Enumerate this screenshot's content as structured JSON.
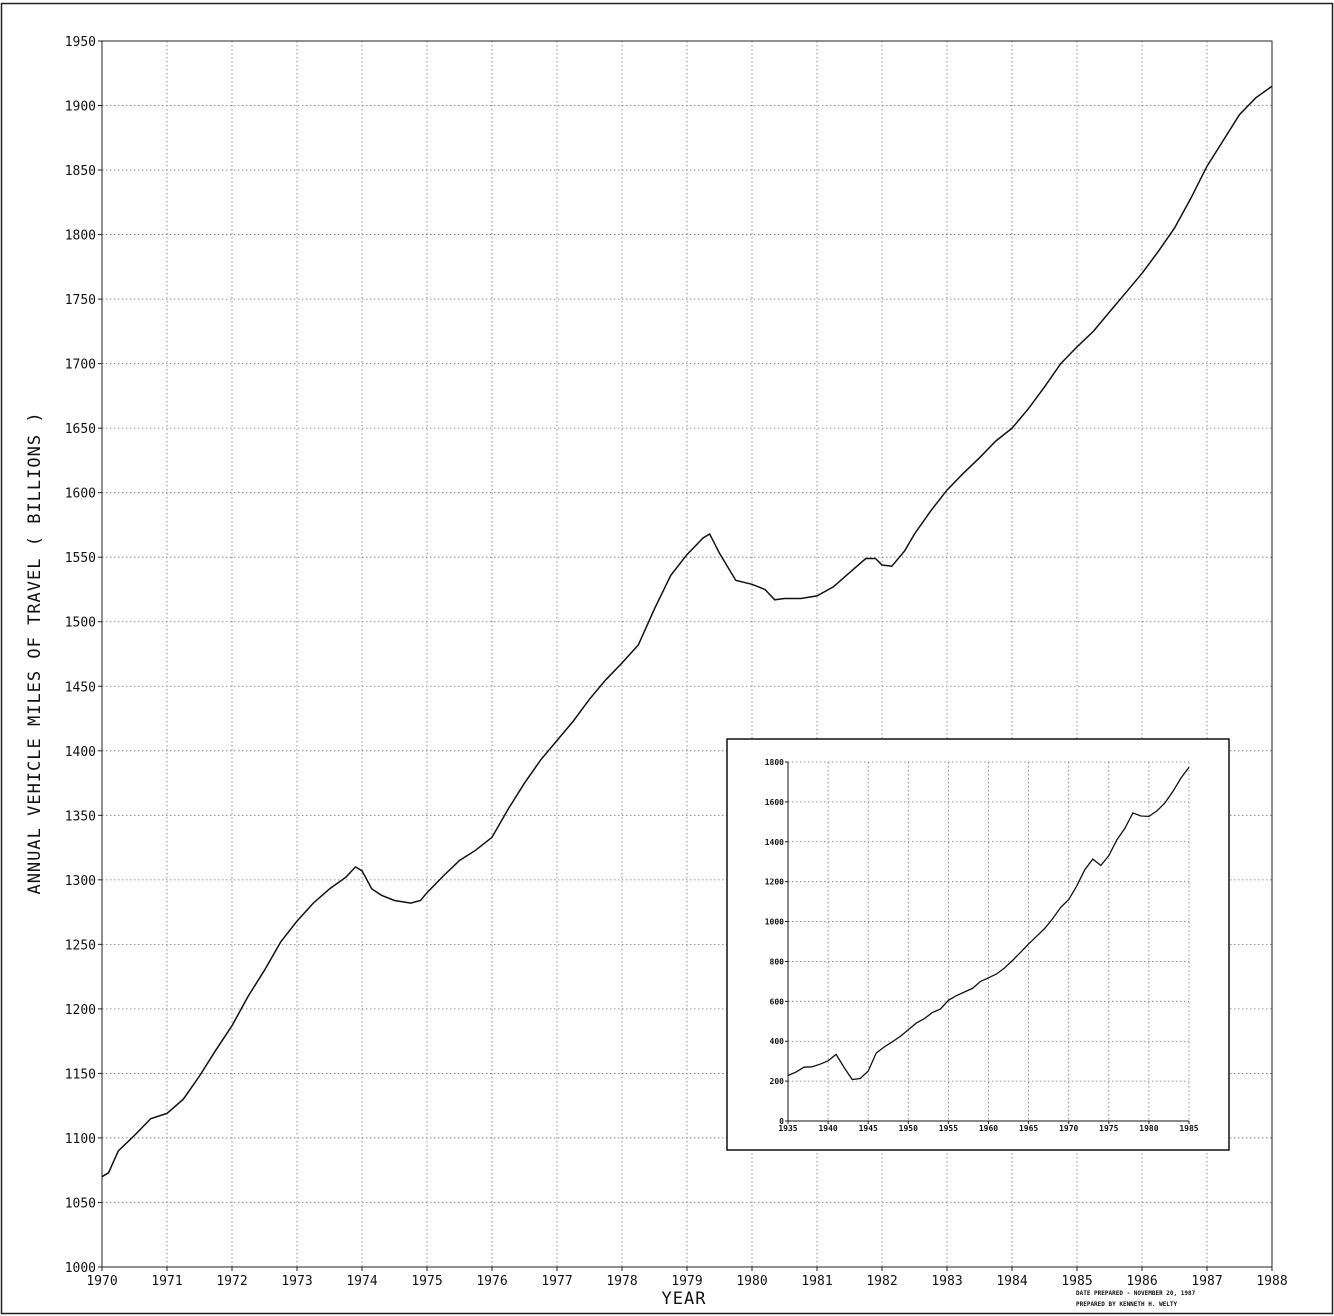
{
  "chart_data": [
    {
      "type": "line",
      "title": "",
      "xlabel": "YEAR",
      "ylabel": "ANNUAL VEHICLE MILES OF TRAVEL ( BILLIONS )",
      "xlim": [
        1970,
        1988
      ],
      "ylim": [
        1000,
        1950
      ],
      "x_ticks": [
        "1970",
        "1971",
        "1972",
        "1973",
        "1974",
        "1975",
        "1976",
        "1977",
        "1978",
        "1979",
        "1980",
        "1981",
        "1982",
        "1983",
        "1984",
        "1985",
        "1986",
        "1987",
        "1988"
      ],
      "y_ticks": [
        "1000",
        "1050",
        "1100",
        "1150",
        "1200",
        "1250",
        "1300",
        "1350",
        "1400",
        "1450",
        "1500",
        "1550",
        "1600",
        "1650",
        "1700",
        "1750",
        "1800",
        "1850",
        "1900",
        "1950"
      ],
      "grid": true,
      "line_color": "#111111",
      "series": [
        {
          "x": [
            1970.0,
            1970.1,
            1970.25,
            1970.5,
            1970.75,
            1971.0,
            1971.25,
            1971.5,
            1971.75,
            1972.0,
            1972.25,
            1972.5,
            1972.75,
            1973.0,
            1973.25,
            1973.5,
            1973.75,
            1973.9,
            1974.0,
            1974.15,
            1974.3,
            1974.5,
            1974.75,
            1974.9,
            1975.0,
            1975.25,
            1975.5,
            1975.75,
            1976.0,
            1976.25,
            1976.5,
            1976.75,
            1977.0,
            1977.25,
            1977.5,
            1977.75,
            1978.0,
            1978.25,
            1978.5,
            1978.75,
            1979.0,
            1979.25,
            1979.35,
            1979.5,
            1979.75,
            1980.0,
            1980.2,
            1980.35,
            1980.5,
            1980.75,
            1981.0,
            1981.25,
            1981.5,
            1981.75,
            1981.9,
            1982.0,
            1982.15,
            1982.35,
            1982.5,
            1982.75,
            1983.0,
            1983.25,
            1983.5,
            1983.75,
            1984.0,
            1984.25,
            1984.5,
            1984.75,
            1985.0,
            1985.25,
            1985.5,
            1985.75,
            1986.0,
            1986.25,
            1986.5,
            1986.75,
            1987.0,
            1987.25,
            1987.5,
            1987.75,
            1988.0
          ],
          "y": [
            1070,
            1073,
            1090,
            1102,
            1115,
            1119,
            1130,
            1148,
            1168,
            1187,
            1210,
            1230,
            1252,
            1268,
            1282,
            1293,
            1302,
            1310,
            1307,
            1293,
            1288,
            1284,
            1282,
            1284,
            1290,
            1303,
            1315,
            1323,
            1333,
            1355,
            1375,
            1393,
            1408,
            1423,
            1440,
            1455,
            1468,
            1482,
            1510,
            1536,
            1552,
            1565,
            1568,
            1553,
            1532,
            1529,
            1525,
            1517,
            1518,
            1518,
            1520,
            1527,
            1538,
            1549,
            1549,
            1544,
            1543,
            1555,
            1568,
            1586,
            1602,
            1615,
            1627,
            1640,
            1650,
            1665,
            1682,
            1700,
            1713,
            1725,
            1740,
            1755,
            1770,
            1787,
            1805,
            1828,
            1853,
            1873,
            1893,
            1906,
            1915
          ]
        }
      ]
    },
    {
      "type": "line",
      "title": "",
      "xlabel": "",
      "ylabel": "",
      "xlim": [
        1935,
        1985
      ],
      "ylim": [
        0,
        1800
      ],
      "x_ticks": [
        "1935",
        "1940",
        "1945",
        "1950",
        "1955",
        "1960",
        "1965",
        "1970",
        "1975",
        "1980",
        "1985"
      ],
      "y_ticks": [
        "0",
        "200",
        "400",
        "600",
        "800",
        "1000",
        "1200",
        "1400",
        "1600",
        "1800"
      ],
      "grid": true,
      "line_color": "#111111",
      "series": [
        {
          "x": [
            1935,
            1936,
            1937,
            1938,
            1939,
            1940,
            1941,
            1942,
            1943,
            1944,
            1945,
            1946,
            1947,
            1948,
            1949,
            1950,
            1951,
            1952,
            1953,
            1954,
            1955,
            1956,
            1957,
            1958,
            1959,
            1960,
            1961,
            1962,
            1963,
            1964,
            1965,
            1966,
            1967,
            1968,
            1969,
            1970,
            1971,
            1972,
            1973,
            1974,
            1975,
            1976,
            1977,
            1978,
            1979,
            1980,
            1981,
            1982,
            1983,
            1984,
            1985
          ],
          "y": [
            228,
            245,
            270,
            272,
            285,
            302,
            334,
            268,
            208,
            213,
            250,
            341,
            371,
            397,
            424,
            458,
            491,
            513,
            544,
            561,
            605,
            628,
            647,
            665,
            700,
            718,
            737,
            767,
            805,
            846,
            888,
            926,
            965,
            1015,
            1071,
            1110,
            1178,
            1259,
            1313,
            1281,
            1330,
            1409,
            1467,
            1545,
            1529,
            1527,
            1555,
            1595,
            1653,
            1720,
            1774
          ]
        }
      ]
    }
  ],
  "credit": {
    "date_prepared": "DATE PREPARED -    NOVEMBER 20, 1987",
    "prepared_by": "PREPARED BY KENNETH H. WELTY"
  }
}
